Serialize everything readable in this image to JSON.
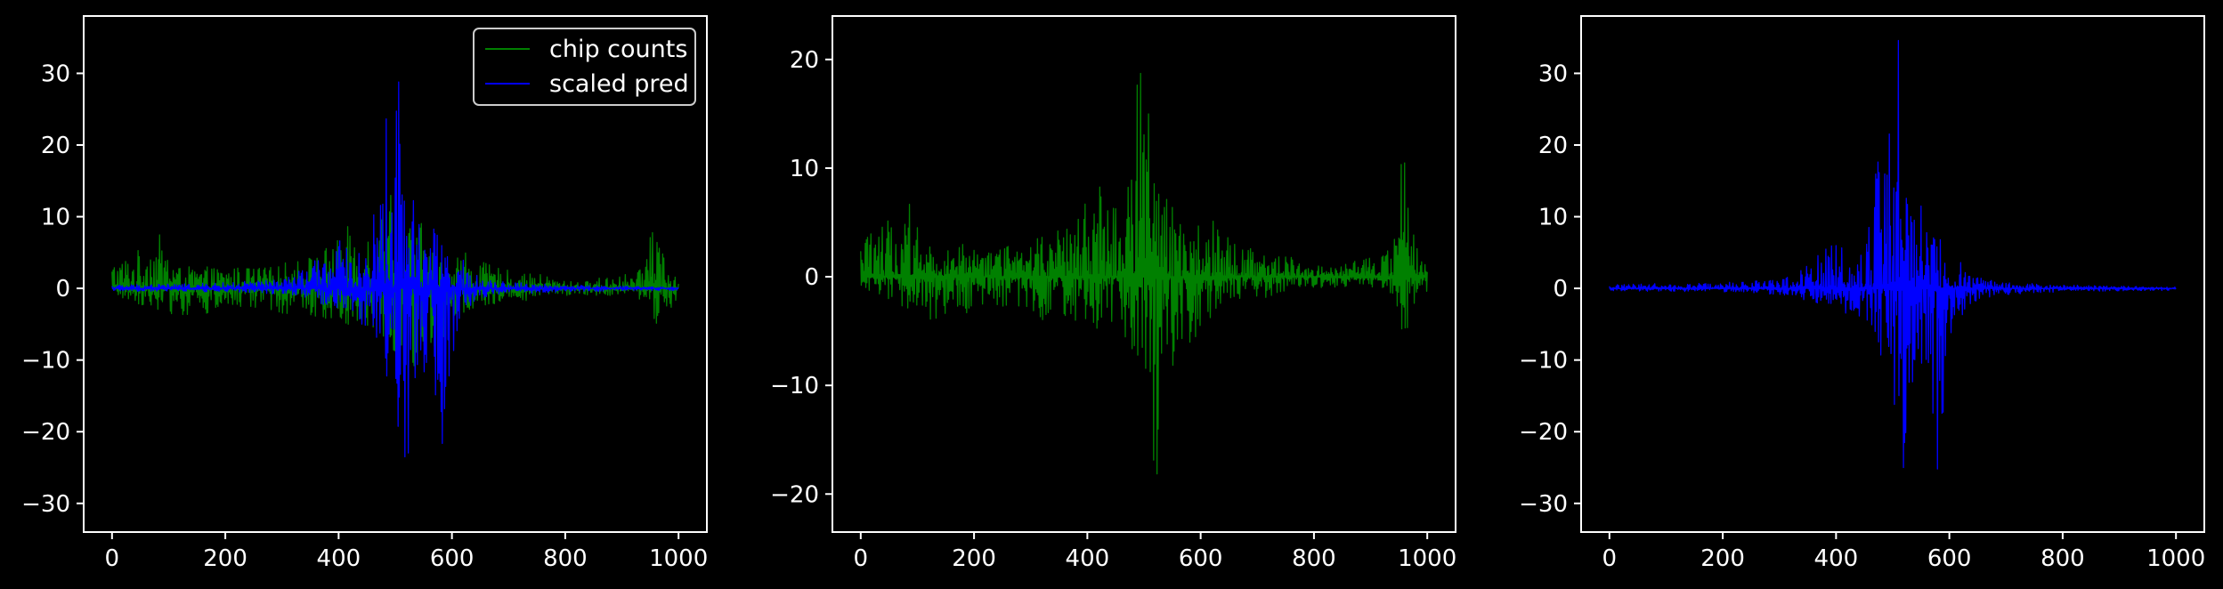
{
  "figure": {
    "background": "#000000",
    "foreground": "#ffffff"
  },
  "legend": {
    "entries": [
      {
        "label": "chip counts",
        "color": "#008000"
      },
      {
        "label": "scaled pred",
        "color": "#0000ff"
      }
    ],
    "placement": "top-right"
  },
  "chart_data": [
    {
      "type": "line",
      "title": "",
      "xlabel": "",
      "ylabel": "",
      "xlim": [
        -50,
        1050
      ],
      "ylim": [
        -34,
        38
      ],
      "xticks": [
        0,
        200,
        400,
        600,
        800,
        1000
      ],
      "yticks": [
        -30,
        -20,
        -10,
        0,
        10,
        20,
        30
      ],
      "grid": false,
      "legend": "top-right",
      "series": [
        {
          "name": "chip counts",
          "color": "#008000",
          "x": [
            0,
            40,
            80,
            120,
            160,
            200,
            240,
            280,
            320,
            360,
            400,
            420,
            440,
            460,
            480,
            490,
            500,
            510,
            520,
            530,
            540,
            550,
            560,
            570,
            580,
            600,
            620,
            640,
            680,
            720,
            760,
            800,
            840,
            880,
            920,
            940,
            950,
            960,
            980,
            1000
          ],
          "upper": [
            4,
            5,
            8,
            3,
            3,
            3,
            3,
            3,
            4,
            5,
            7,
            9,
            7,
            10,
            13,
            19,
            22,
            16,
            8,
            10,
            11,
            8,
            7,
            5,
            4,
            5,
            6,
            4,
            3,
            2,
            2,
            1,
            1,
            2,
            2,
            3,
            14,
            11,
            3,
            1
          ],
          "lower": [
            -1,
            -2,
            -3,
            -4,
            -4,
            -3,
            -3,
            -3,
            -4,
            -4,
            -5,
            -5,
            -6,
            -6,
            -7,
            -8,
            -9,
            -14,
            -21,
            -13,
            -11,
            -9,
            -14,
            -12,
            -8,
            -5,
            -4,
            -3,
            -2,
            -2,
            -1,
            -1,
            -1,
            -1,
            -1,
            -2,
            -4,
            -6,
            -3,
            -2
          ]
        },
        {
          "name": "scaled pred",
          "color": "#0000ff",
          "x": [
            0,
            40,
            80,
            120,
            160,
            200,
            240,
            280,
            320,
            360,
            400,
            420,
            440,
            460,
            480,
            490,
            500,
            510,
            520,
            530,
            540,
            550,
            560,
            570,
            580,
            590,
            600,
            620,
            640,
            680,
            720,
            760,
            800,
            840,
            880,
            920,
            960,
            1000
          ],
          "upper": [
            0.5,
            0.6,
            0.7,
            0.6,
            0.7,
            0.8,
            1,
            1.2,
            2,
            4,
            7,
            5,
            5,
            9,
            24,
            25,
            26,
            35,
            18,
            14,
            11,
            12,
            8,
            14,
            8,
            6,
            0.5,
            4,
            2,
            1,
            0.8,
            0.6,
            0.5,
            0.4,
            0.3,
            0.3,
            0.2,
            0.2
          ],
          "lower": [
            -0.3,
            -0.4,
            -0.4,
            -0.4,
            -0.5,
            -0.5,
            -0.6,
            -0.8,
            -1,
            -2,
            -3,
            -4,
            -5,
            -6,
            -10,
            -15,
            -18,
            -22,
            -31,
            -24,
            -14,
            -12,
            -10,
            -22,
            -30,
            -20,
            -10,
            -4,
            -2,
            -1,
            -0.8,
            -0.6,
            -0.5,
            -0.4,
            -0.4,
            -0.3,
            -0.3,
            -0.3
          ]
        }
      ]
    },
    {
      "type": "line",
      "title": "",
      "xlabel": "",
      "ylabel": "",
      "xlim": [
        -50,
        1050
      ],
      "ylim": [
        -23.5,
        24
      ],
      "xticks": [
        0,
        200,
        400,
        600,
        800,
        1000
      ],
      "yticks": [
        -20,
        -10,
        0,
        10,
        20
      ],
      "grid": false,
      "series": [
        {
          "color": "#008000",
          "x": [
            0,
            40,
            80,
            120,
            160,
            200,
            240,
            280,
            320,
            360,
            400,
            420,
            440,
            460,
            480,
            490,
            500,
            510,
            520,
            530,
            540,
            550,
            560,
            570,
            580,
            600,
            620,
            640,
            680,
            720,
            760,
            800,
            840,
            880,
            920,
            940,
            950,
            960,
            980,
            1000
          ],
          "upper": [
            4,
            5,
            8,
            3,
            3,
            3,
            3,
            3,
            4,
            5,
            7,
            9,
            7,
            10,
            13,
            19,
            22,
            16,
            8,
            10,
            11,
            8,
            7,
            5,
            4,
            5,
            6,
            4,
            3,
            2,
            2,
            1,
            1,
            2,
            2,
            3,
            14,
            11,
            3,
            1
          ],
          "lower": [
            -1,
            -2,
            -3,
            -4,
            -4,
            -3,
            -3,
            -3,
            -4,
            -4,
            -5,
            -5,
            -6,
            -6,
            -7,
            -8,
            -9,
            -14,
            -21,
            -13,
            -11,
            -9,
            -14,
            -12,
            -8,
            -5,
            -4,
            -3,
            -2,
            -2,
            -1,
            -1,
            -1,
            -1,
            -1,
            -2,
            -4,
            -6,
            -3,
            -2
          ]
        }
      ]
    },
    {
      "type": "line",
      "title": "",
      "xlabel": "",
      "ylabel": "",
      "xlim": [
        -50,
        1050
      ],
      "ylim": [
        -34,
        38
      ],
      "xticks": [
        0,
        200,
        400,
        600,
        800,
        1000
      ],
      "yticks": [
        -30,
        -20,
        -10,
        0,
        10,
        20,
        30
      ],
      "grid": false,
      "series": [
        {
          "color": "#0000ff",
          "x": [
            0,
            40,
            80,
            120,
            160,
            200,
            240,
            280,
            320,
            360,
            400,
            420,
            440,
            460,
            480,
            490,
            500,
            510,
            520,
            530,
            540,
            550,
            560,
            570,
            580,
            590,
            600,
            620,
            640,
            680,
            720,
            760,
            800,
            840,
            880,
            920,
            960,
            1000
          ],
          "upper": [
            0.5,
            0.6,
            0.7,
            0.6,
            0.7,
            0.8,
            1,
            1.2,
            2,
            4,
            7,
            5,
            5,
            9,
            24,
            25,
            26,
            35,
            18,
            14,
            11,
            12,
            8,
            14,
            8,
            6,
            0.5,
            4,
            2,
            1,
            0.8,
            0.6,
            0.5,
            0.4,
            0.3,
            0.3,
            0.2,
            0.2
          ],
          "lower": [
            -0.3,
            -0.4,
            -0.4,
            -0.4,
            -0.5,
            -0.5,
            -0.6,
            -0.8,
            -1,
            -2,
            -3,
            -4,
            -5,
            -6,
            -10,
            -15,
            -18,
            -22,
            -31,
            -24,
            -14,
            -12,
            -10,
            -22,
            -30,
            -20,
            -10,
            -4,
            -2,
            -1,
            -0.8,
            -0.6,
            -0.5,
            -0.4,
            -0.4,
            -0.3,
            -0.3,
            -0.3
          ]
        }
      ]
    }
  ]
}
